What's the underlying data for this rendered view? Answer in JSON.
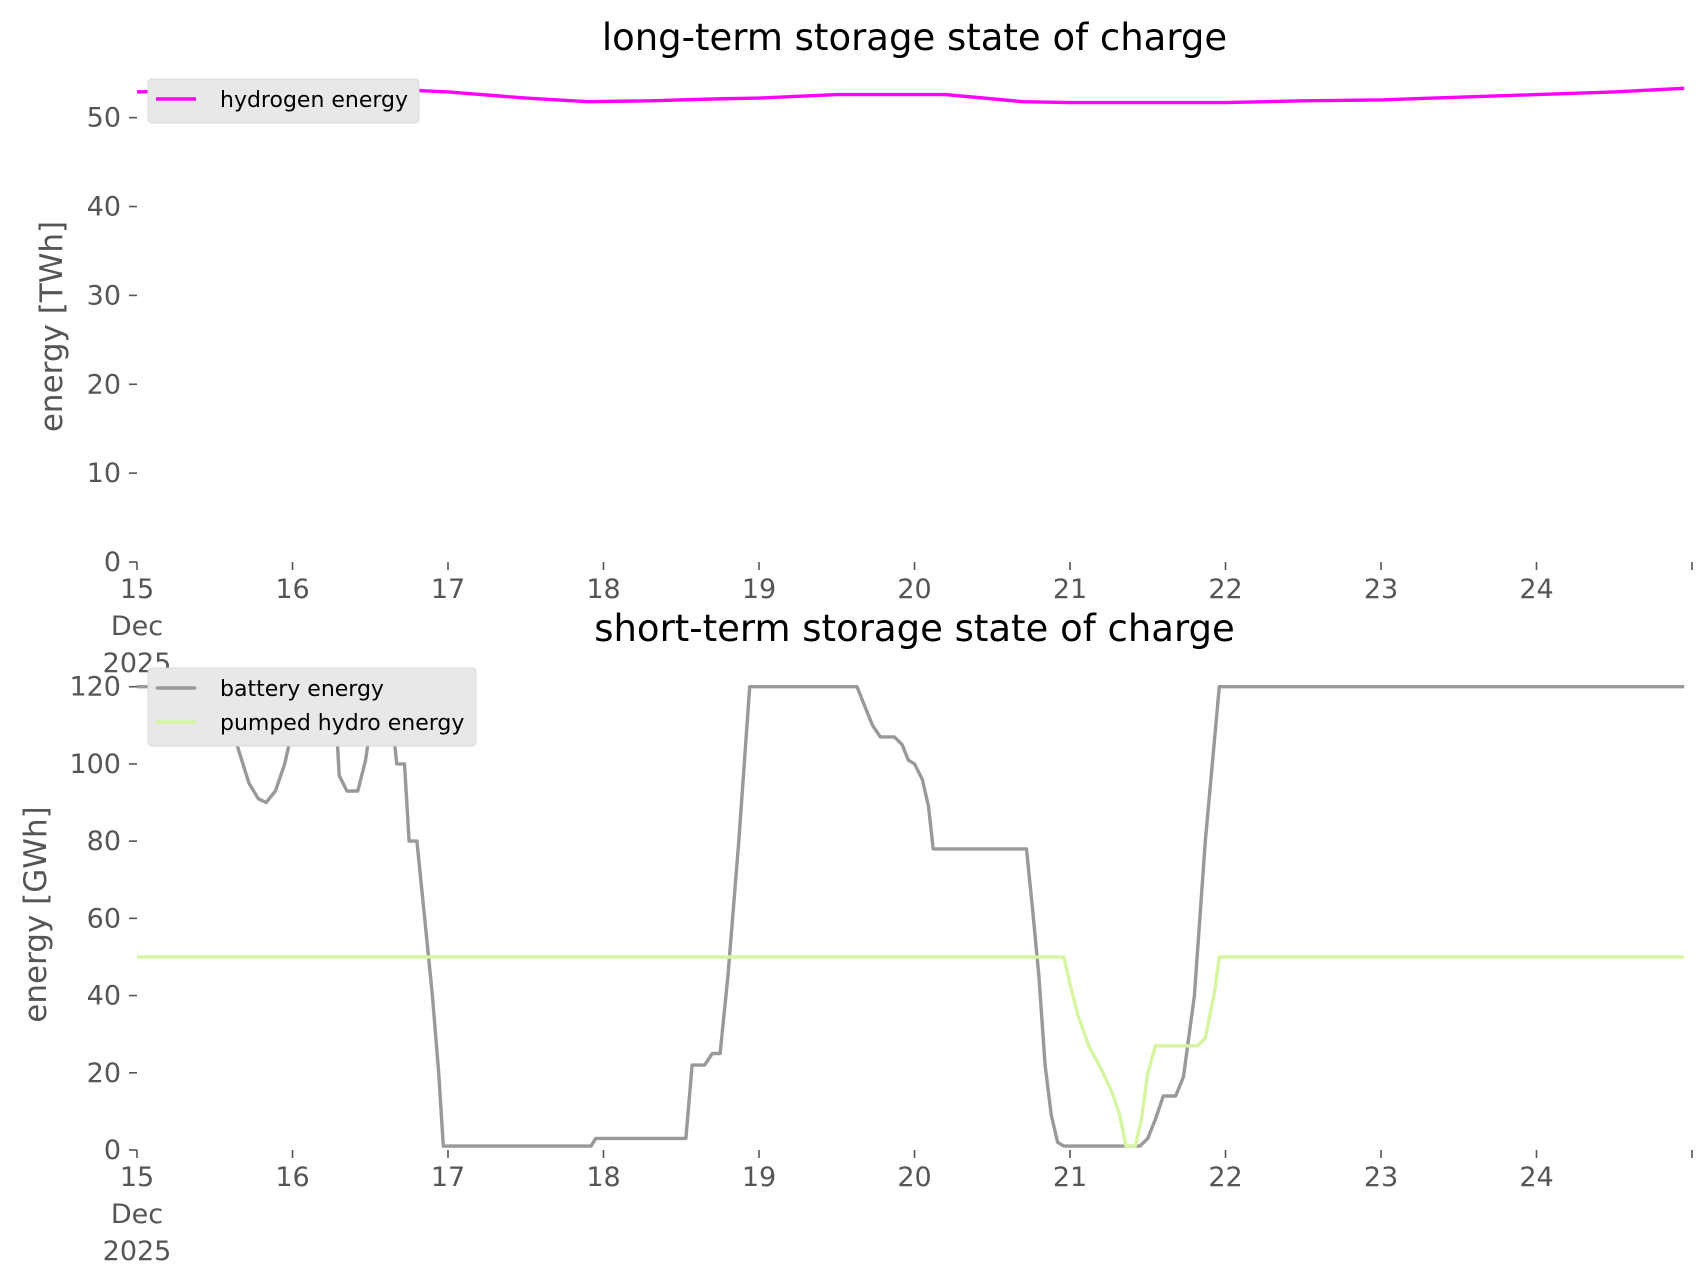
{
  "chart_data": [
    {
      "type": "line",
      "title": "long-term storage state of charge",
      "xlabel": "",
      "ylabel": "energy [TWh]",
      "x_unit": "days (December 2025)",
      "xlim": [
        15,
        25
      ],
      "ylim": [
        0,
        53
      ],
      "yticks": [
        0,
        10,
        20,
        30,
        40,
        50
      ],
      "xtick_labels": [
        {
          "value": 15,
          "lines": [
            "15",
            "Dec",
            "2025"
          ]
        },
        {
          "value": 16,
          "lines": [
            "16"
          ]
        },
        {
          "value": 17,
          "lines": [
            "17"
          ]
        },
        {
          "value": 18,
          "lines": [
            "18"
          ]
        },
        {
          "value": 19,
          "lines": [
            "19"
          ]
        },
        {
          "value": 20,
          "lines": [
            "20"
          ]
        },
        {
          "value": 21,
          "lines": [
            "21"
          ]
        },
        {
          "value": 22,
          "lines": [
            "22"
          ]
        },
        {
          "value": 23,
          "lines": [
            "23"
          ]
        },
        {
          "value": 24,
          "lines": [
            "24"
          ]
        }
      ],
      "grid": false,
      "legend": "top-left",
      "series": [
        {
          "name": "hydrogen energy",
          "color": "#ff00ff",
          "points": [
            [
              15.0,
              52.9
            ],
            [
              15.5,
              53.1
            ],
            [
              16.0,
              53.2
            ],
            [
              16.5,
              53.3
            ],
            [
              17.0,
              52.9
            ],
            [
              17.5,
              52.2
            ],
            [
              17.9,
              51.8
            ],
            [
              18.3,
              51.9
            ],
            [
              18.7,
              52.1
            ],
            [
              19.0,
              52.2
            ],
            [
              19.5,
              52.6
            ],
            [
              20.0,
              52.6
            ],
            [
              20.2,
              52.6
            ],
            [
              20.7,
              51.8
            ],
            [
              21.0,
              51.7
            ],
            [
              21.5,
              51.7
            ],
            [
              22.0,
              51.7
            ],
            [
              22.5,
              51.9
            ],
            [
              23.0,
              52.0
            ],
            [
              23.5,
              52.3
            ],
            [
              24.0,
              52.6
            ],
            [
              24.5,
              52.9
            ],
            [
              24.95,
              53.3
            ]
          ]
        }
      ]
    },
    {
      "type": "line",
      "title": "short-term storage state of charge",
      "xlabel": "",
      "ylabel": "energy [GWh]",
      "x_unit": "days (December 2025)",
      "xlim": [
        15,
        25
      ],
      "ylim": [
        0,
        122
      ],
      "yticks": [
        0,
        20,
        40,
        60,
        80,
        100,
        120
      ],
      "xtick_labels": [
        {
          "value": 15,
          "lines": [
            "15",
            "Dec",
            "2025"
          ]
        },
        {
          "value": 16,
          "lines": [
            "16"
          ]
        },
        {
          "value": 17,
          "lines": [
            "17"
          ]
        },
        {
          "value": 18,
          "lines": [
            "18"
          ]
        },
        {
          "value": 19,
          "lines": [
            "19"
          ]
        },
        {
          "value": 20,
          "lines": [
            "20"
          ]
        },
        {
          "value": 21,
          "lines": [
            "21"
          ]
        },
        {
          "value": 22,
          "lines": [
            "22"
          ]
        },
        {
          "value": 23,
          "lines": [
            "23"
          ]
        },
        {
          "value": 24,
          "lines": [
            "24"
          ]
        }
      ],
      "grid": false,
      "legend": "top-left",
      "series": [
        {
          "name": "battery energy",
          "color": "#999999",
          "points": [
            [
              15.0,
              120
            ],
            [
              15.25,
              120
            ],
            [
              15.33,
              114
            ],
            [
              15.58,
              114
            ],
            [
              15.65,
              104
            ],
            [
              15.72,
              95
            ],
            [
              15.78,
              91
            ],
            [
              15.83,
              90
            ],
            [
              15.89,
              93
            ],
            [
              15.95,
              100
            ],
            [
              16.0,
              109
            ],
            [
              16.05,
              120
            ],
            [
              16.25,
              120
            ],
            [
              16.28,
              112
            ],
            [
              16.3,
              97
            ],
            [
              16.35,
              93
            ],
            [
              16.42,
              93
            ],
            [
              16.47,
              101
            ],
            [
              16.52,
              115
            ],
            [
              16.55,
              120
            ],
            [
              16.62,
              120
            ],
            [
              16.67,
              100
            ],
            [
              16.72,
              100
            ],
            [
              16.75,
              80
            ],
            [
              16.8,
              80
            ],
            [
              16.85,
              60
            ],
            [
              16.9,
              40
            ],
            [
              16.94,
              20
            ],
            [
              16.97,
              1
            ],
            [
              17.92,
              1
            ],
            [
              17.95,
              3
            ],
            [
              18.53,
              3
            ],
            [
              18.57,
              22
            ],
            [
              18.65,
              22
            ],
            [
              18.7,
              25
            ],
            [
              18.75,
              25
            ],
            [
              18.8,
              45
            ],
            [
              18.87,
              80
            ],
            [
              18.94,
              120
            ],
            [
              19.63,
              120
            ],
            [
              19.68,
              115
            ],
            [
              19.73,
              110
            ],
            [
              19.78,
              107
            ],
            [
              19.87,
              107
            ],
            [
              19.92,
              105
            ],
            [
              19.96,
              101
            ],
            [
              20.0,
              100
            ],
            [
              20.05,
              96
            ],
            [
              20.09,
              89
            ],
            [
              20.12,
              78
            ],
            [
              20.72,
              78
            ],
            [
              20.76,
              62
            ],
            [
              20.8,
              45
            ],
            [
              20.84,
              22
            ],
            [
              20.88,
              9
            ],
            [
              20.92,
              2
            ],
            [
              20.96,
              1
            ],
            [
              21.45,
              1
            ],
            [
              21.5,
              3
            ],
            [
              21.55,
              8
            ],
            [
              21.6,
              14
            ],
            [
              21.68,
              14
            ],
            [
              21.73,
              19
            ],
            [
              21.8,
              40
            ],
            [
              21.87,
              80
            ],
            [
              21.96,
              120
            ],
            [
              24.95,
              120
            ]
          ]
        },
        {
          "name": "pumped hydro energy",
          "color": "#d6f5a0",
          "points": [
            [
              15.0,
              50
            ],
            [
              20.96,
              50
            ],
            [
              21.0,
              43
            ],
            [
              21.05,
              35
            ],
            [
              21.12,
              27
            ],
            [
              21.2,
              21
            ],
            [
              21.27,
              15
            ],
            [
              21.32,
              9
            ],
            [
              21.36,
              1
            ],
            [
              21.42,
              1
            ],
            [
              21.46,
              8
            ],
            [
              21.5,
              20
            ],
            [
              21.55,
              27
            ],
            [
              21.82,
              27
            ],
            [
              21.87,
              29
            ],
            [
              21.93,
              41
            ],
            [
              21.96,
              50
            ],
            [
              24.95,
              50
            ]
          ]
        }
      ]
    }
  ]
}
